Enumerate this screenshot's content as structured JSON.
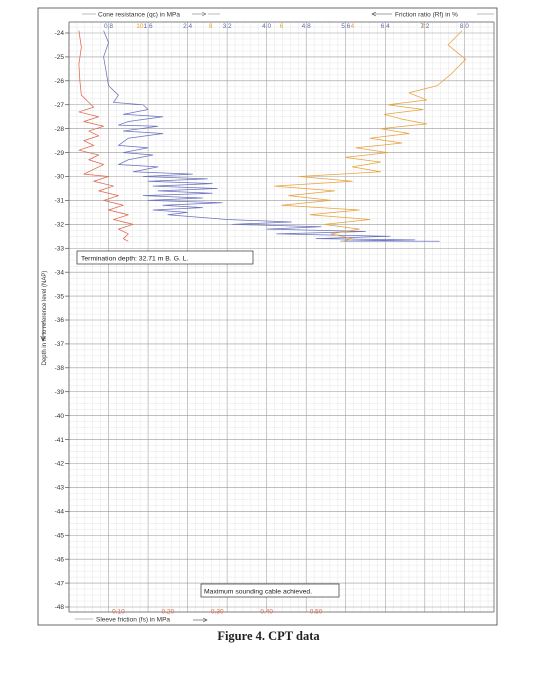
{
  "figure": {
    "caption": "Figure 4. CPT data"
  },
  "chart_data": {
    "type": "line",
    "grid": true,
    "top_axis_left": {
      "title": "Cone resistance (qc) in MPa",
      "range": [
        0,
        8.6
      ],
      "ticks": [
        0.8,
        1.6,
        2.4,
        3.2,
        4.0,
        4.8,
        5.6,
        6.4,
        7.2,
        8.0
      ],
      "tick_labels": [
        "0.8",
        "1.6",
        "2.4",
        "3.2",
        "4.0",
        "4.8",
        "5.6",
        "6.4",
        "7.2",
        "8.0"
      ],
      "color": "#5a6ab0"
    },
    "top_axis_right": {
      "title": "Friction ratio (Rf) in %",
      "range": [
        12,
        0
      ],
      "ticks": [
        10,
        8,
        6,
        4,
        2
      ],
      "tick_labels": [
        "10",
        "8",
        "6",
        "4",
        "2"
      ],
      "color": "#e8a23a"
    },
    "bottom_axis": {
      "title": "Sleeve friction (fs) in MPa",
      "range": [
        0,
        0.86
      ],
      "ticks": [
        0.1,
        0.2,
        0.3,
        0.4,
        0.5
      ],
      "tick_labels": [
        "0.10",
        "0.20",
        "0.30",
        "0.40",
        "0.50"
      ],
      "color": "#e0664a"
    },
    "y_axis": {
      "title": "Depth in m to reference level (NAP)",
      "range": [
        -24,
        -48
      ],
      "ticks": [
        -24,
        -25,
        -26,
        -27,
        -28,
        -29,
        -30,
        -31,
        -32,
        -33,
        -34,
        -35,
        -36,
        -37,
        -38,
        -39,
        -40,
        -41,
        -42,
        -43,
        -44,
        -45,
        -46,
        -47,
        -48
      ],
      "tick_labels": [
        "-24",
        "-25",
        "-26",
        "-27",
        "-28",
        "-29",
        "-30",
        "-31",
        "-32",
        "-33",
        "-34",
        "-35",
        "-36",
        "-37",
        "-38",
        "-39",
        "-40",
        "-41",
        "-42",
        "-43",
        "-44",
        "-45",
        "-46",
        "-47",
        "-48"
      ]
    },
    "annotations": [
      "Termination depth: 32.71 m B. G. L.",
      "Maximum sounding cable achieved."
    ],
    "series": [
      {
        "axis": "qc",
        "color": "#6a72c0",
        "points": [
          [
            0.7,
            -23.9
          ],
          [
            0.8,
            -24.4
          ],
          [
            0.7,
            -25.0
          ],
          [
            0.75,
            -25.6
          ],
          [
            0.8,
            -26.2
          ],
          [
            1.0,
            -26.6
          ],
          [
            0.9,
            -26.9
          ],
          [
            1.5,
            -27.0
          ],
          [
            1.6,
            -27.2
          ],
          [
            1.1,
            -27.4
          ],
          [
            1.9,
            -27.5
          ],
          [
            1.2,
            -27.7
          ],
          [
            1.0,
            -27.85
          ],
          [
            1.8,
            -27.9
          ],
          [
            1.1,
            -28.1
          ],
          [
            1.9,
            -28.2
          ],
          [
            1.2,
            -28.4
          ],
          [
            1.0,
            -28.7
          ],
          [
            1.6,
            -28.8
          ],
          [
            1.1,
            -29.0
          ],
          [
            1.7,
            -29.1
          ],
          [
            1.2,
            -29.3
          ],
          [
            1.0,
            -29.5
          ],
          [
            1.8,
            -29.6
          ],
          [
            1.3,
            -29.8
          ],
          [
            2.5,
            -29.9
          ],
          [
            1.5,
            -30.0
          ],
          [
            2.8,
            -30.1
          ],
          [
            1.6,
            -30.2
          ],
          [
            2.9,
            -30.3
          ],
          [
            1.7,
            -30.4
          ],
          [
            3.0,
            -30.5
          ],
          [
            1.8,
            -30.6
          ],
          [
            2.9,
            -30.7
          ],
          [
            1.5,
            -30.8
          ],
          [
            2.7,
            -30.9
          ],
          [
            1.6,
            -31.0
          ],
          [
            3.1,
            -31.1
          ],
          [
            1.9,
            -31.2
          ],
          [
            2.7,
            -31.3
          ],
          [
            1.7,
            -31.4
          ],
          [
            2.4,
            -31.5
          ],
          [
            2.0,
            -31.6
          ],
          [
            3.2,
            -31.8
          ],
          [
            4.5,
            -31.9
          ],
          [
            3.3,
            -32.0
          ],
          [
            5.1,
            -32.1
          ],
          [
            4.0,
            -32.2
          ],
          [
            6.0,
            -32.3
          ],
          [
            4.2,
            -32.4
          ],
          [
            6.5,
            -32.5
          ],
          [
            5.0,
            -32.6
          ],
          [
            7.0,
            -32.65
          ],
          [
            5.5,
            -32.7
          ],
          [
            7.5,
            -32.71
          ]
        ]
      },
      {
        "axis": "fs",
        "color": "#e0664a",
        "points": [
          [
            0.02,
            -23.9
          ],
          [
            0.025,
            -24.6
          ],
          [
            0.02,
            -25.3
          ],
          [
            0.022,
            -26.0
          ],
          [
            0.025,
            -26.6
          ],
          [
            0.04,
            -26.9
          ],
          [
            0.05,
            -27.1
          ],
          [
            0.02,
            -27.3
          ],
          [
            0.06,
            -27.5
          ],
          [
            0.03,
            -27.7
          ],
          [
            0.07,
            -27.9
          ],
          [
            0.04,
            -28.1
          ],
          [
            0.06,
            -28.3
          ],
          [
            0.03,
            -28.5
          ],
          [
            0.05,
            -28.7
          ],
          [
            0.02,
            -28.9
          ],
          [
            0.06,
            -29.1
          ],
          [
            0.04,
            -29.3
          ],
          [
            0.07,
            -29.5
          ],
          [
            0.05,
            -29.7
          ],
          [
            0.03,
            -29.9
          ],
          [
            0.08,
            -30.0
          ],
          [
            0.05,
            -30.2
          ],
          [
            0.09,
            -30.4
          ],
          [
            0.06,
            -30.6
          ],
          [
            0.1,
            -30.8
          ],
          [
            0.07,
            -31.0
          ],
          [
            0.11,
            -31.2
          ],
          [
            0.08,
            -31.4
          ],
          [
            0.12,
            -31.6
          ],
          [
            0.09,
            -31.8
          ],
          [
            0.13,
            -32.0
          ],
          [
            0.1,
            -32.2
          ],
          [
            0.12,
            -32.4
          ],
          [
            0.11,
            -32.6
          ],
          [
            0.12,
            -32.71
          ]
        ]
      },
      {
        "axis": "rf",
        "color": "#e8a23a",
        "points": [
          [
            0.9,
            -23.9
          ],
          [
            1.3,
            -24.5
          ],
          [
            0.8,
            -25.1
          ],
          [
            1.2,
            -25.7
          ],
          [
            1.6,
            -26.2
          ],
          [
            2.4,
            -26.5
          ],
          [
            1.9,
            -26.8
          ],
          [
            3.0,
            -27.0
          ],
          [
            2.0,
            -27.2
          ],
          [
            3.1,
            -27.4
          ],
          [
            2.6,
            -27.6
          ],
          [
            1.9,
            -27.8
          ],
          [
            3.2,
            -28.0
          ],
          [
            2.4,
            -28.2
          ],
          [
            3.5,
            -28.4
          ],
          [
            2.6,
            -28.6
          ],
          [
            3.9,
            -28.8
          ],
          [
            3.0,
            -29.0
          ],
          [
            4.2,
            -29.2
          ],
          [
            3.2,
            -29.4
          ],
          [
            4.0,
            -29.6
          ],
          [
            3.2,
            -29.8
          ],
          [
            5.5,
            -30.0
          ],
          [
            4.0,
            -30.2
          ],
          [
            6.2,
            -30.4
          ],
          [
            4.5,
            -30.6
          ],
          [
            5.8,
            -30.8
          ],
          [
            4.6,
            -31.0
          ],
          [
            6.0,
            -31.2
          ],
          [
            3.8,
            -31.4
          ],
          [
            5.2,
            -31.6
          ],
          [
            3.5,
            -31.8
          ],
          [
            4.8,
            -32.0
          ],
          [
            3.8,
            -32.2
          ],
          [
            4.6,
            -32.4
          ],
          [
            4.0,
            -32.6
          ],
          [
            4.3,
            -32.71
          ]
        ]
      }
    ]
  }
}
